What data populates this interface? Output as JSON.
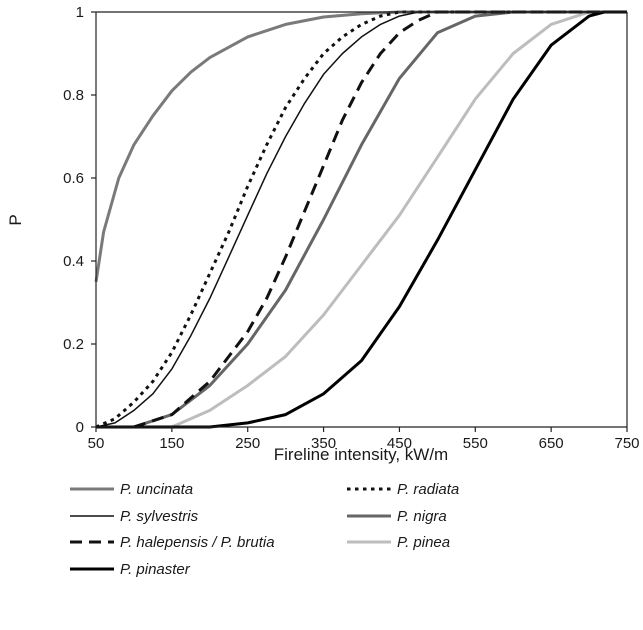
{
  "chart_data": {
    "type": "line",
    "xlabel": "Fireline intensity, kW/m",
    "ylabel": "P",
    "xlim": [
      50,
      750
    ],
    "ylim": [
      0,
      1
    ],
    "xticks": [
      "50",
      "150",
      "250",
      "350",
      "450",
      "550",
      "650",
      "750"
    ],
    "yticks": [
      "0",
      "0.2",
      "0.4",
      "0.6",
      "0.8",
      "1"
    ],
    "grid": false,
    "legend_position": "bottom",
    "series": [
      {
        "name": "P. uncinata",
        "color": "#7a7a7a",
        "dash": "solid",
        "width": 3,
        "x": [
          50,
          60,
          80,
          100,
          125,
          150,
          175,
          200,
          250,
          300,
          350,
          400,
          450,
          500,
          750
        ],
        "y": [
          0.35,
          0.47,
          0.6,
          0.68,
          0.75,
          0.81,
          0.855,
          0.89,
          0.94,
          0.97,
          0.988,
          0.996,
          1.0,
          1.0,
          1.0
        ]
      },
      {
        "name": "P. radiata",
        "color": "#111111",
        "dash": "dotted",
        "width": 3,
        "x": [
          50,
          75,
          100,
          125,
          150,
          175,
          200,
          225,
          250,
          275,
          300,
          325,
          350,
          375,
          400,
          425,
          450,
          475,
          750
        ],
        "y": [
          0.0,
          0.02,
          0.06,
          0.11,
          0.18,
          0.27,
          0.37,
          0.47,
          0.58,
          0.68,
          0.77,
          0.84,
          0.9,
          0.94,
          0.97,
          0.99,
          1.0,
          1.0,
          1.0
        ]
      },
      {
        "name": "P. sylvestris",
        "color": "#111111",
        "dash": "solid",
        "width": 1.5,
        "x": [
          50,
          75,
          100,
          125,
          150,
          175,
          200,
          225,
          250,
          275,
          300,
          325,
          350,
          375,
          400,
          425,
          450,
          475,
          500,
          750
        ],
        "y": [
          0.0,
          0.01,
          0.04,
          0.08,
          0.14,
          0.22,
          0.31,
          0.41,
          0.51,
          0.61,
          0.7,
          0.78,
          0.85,
          0.9,
          0.94,
          0.97,
          0.99,
          1.0,
          1.0,
          1.0
        ]
      },
      {
        "name": "P. nigra",
        "color": "#666666",
        "dash": "solid",
        "width": 3,
        "x": [
          50,
          100,
          150,
          200,
          250,
          300,
          350,
          400,
          450,
          500,
          550,
          600,
          750
        ],
        "y": [
          0.0,
          0.0,
          0.03,
          0.1,
          0.2,
          0.33,
          0.5,
          0.68,
          0.84,
          0.95,
          0.99,
          1.0,
          1.0
        ]
      },
      {
        "name": "P. halepensis / P. brutia",
        "color": "#111111",
        "dash": "dashed",
        "width": 3,
        "x": [
          50,
          100,
          150,
          200,
          250,
          275,
          300,
          325,
          350,
          375,
          400,
          425,
          450,
          475,
          500,
          750
        ],
        "y": [
          0.0,
          0.0,
          0.03,
          0.11,
          0.23,
          0.31,
          0.41,
          0.52,
          0.63,
          0.74,
          0.83,
          0.9,
          0.95,
          0.98,
          1.0,
          1.0
        ]
      },
      {
        "name": "P. pinea",
        "color": "#bdbdbd",
        "dash": "solid",
        "width": 3,
        "x": [
          50,
          150,
          200,
          250,
          300,
          350,
          400,
          450,
          500,
          550,
          600,
          650,
          700,
          750
        ],
        "y": [
          0.0,
          0.0,
          0.04,
          0.1,
          0.17,
          0.27,
          0.39,
          0.51,
          0.65,
          0.79,
          0.9,
          0.97,
          1.0,
          1.0
        ]
      },
      {
        "name": "P. pinaster",
        "color": "#000000",
        "dash": "solid",
        "width": 3,
        "x": [
          50,
          200,
          250,
          300,
          350,
          400,
          450,
          500,
          550,
          600,
          650,
          700,
          720,
          750
        ],
        "y": [
          0.0,
          0.0,
          0.01,
          0.03,
          0.08,
          0.16,
          0.29,
          0.45,
          0.62,
          0.79,
          0.92,
          0.99,
          1.0,
          1.0
        ]
      }
    ]
  }
}
